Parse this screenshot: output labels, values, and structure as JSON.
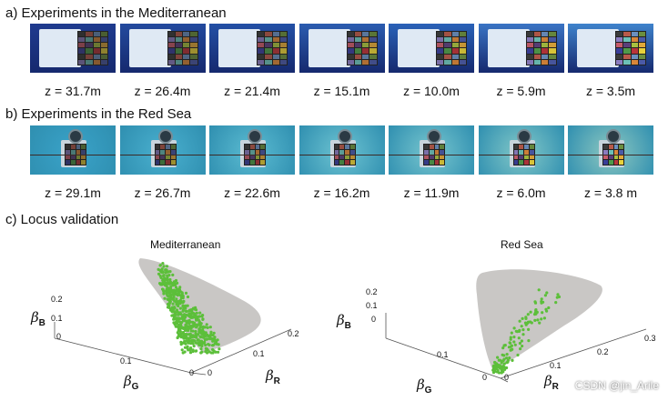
{
  "sections": {
    "a": {
      "title": "a)  Experiments in the Mediterranean"
    },
    "b": {
      "title": "b)  Experiments in the Red Sea"
    },
    "c": {
      "title": "c)  Locus validation"
    }
  },
  "mediterranean_depths": [
    "z = 31.7m",
    "z = 26.4m",
    "z = 21.4m",
    "z = 15.1m",
    "z = 10.0m",
    "z = 5.9m",
    "z = 3.5m"
  ],
  "redsea_depths": [
    "z = 29.1m",
    "z = 26.7m",
    "z = 22.6m",
    "z = 16.2m",
    "z = 11.9m",
    "z = 6.0m",
    "z = 3.8 m"
  ],
  "colors": {
    "locus_fill": "#c9c7c5",
    "points": "#5cbf3a",
    "axis": "#555555",
    "med_water": [
      "#1f3b8f",
      "#234a9e",
      "#2350a6",
      "#2b5cb0",
      "#2a62b8",
      "#3a74c4",
      "#3f83cc"
    ],
    "red_water": [
      "#3aa3c9",
      "#4ab0cf",
      "#5cbcd2",
      "#6ec4d2",
      "#79c7cf",
      "#84c9c8",
      "#8ec8c0"
    ]
  },
  "plots": [
    {
      "title": "Mediterranean",
      "beta_B_ticks": [
        "0.2",
        "0.1",
        "0"
      ],
      "beta_G_ticks": [
        "0.1",
        "0"
      ],
      "beta_R_ticks": [
        "0",
        "0.1",
        "0.2"
      ],
      "beta_B_label": "β",
      "beta_B_sub": "B",
      "beta_G_label": "β",
      "beta_G_sub": "G",
      "beta_R_label": "β",
      "beta_R_sub": "R"
    },
    {
      "title": "Red Sea",
      "beta_B_ticks": [
        "0.2",
        "0.1",
        "0"
      ],
      "beta_G_ticks": [
        "0.1",
        "0"
      ],
      "beta_R_ticks": [
        "0.1",
        "0.2",
        "0.3"
      ],
      "beta_B_label": "β",
      "beta_B_sub": "B",
      "beta_G_label": "β",
      "beta_G_sub": "G",
      "beta_R_label": "β",
      "beta_R_sub": "R",
      "origin_tick": "0"
    }
  ],
  "watermark": "CSDN @jin_Arile"
}
